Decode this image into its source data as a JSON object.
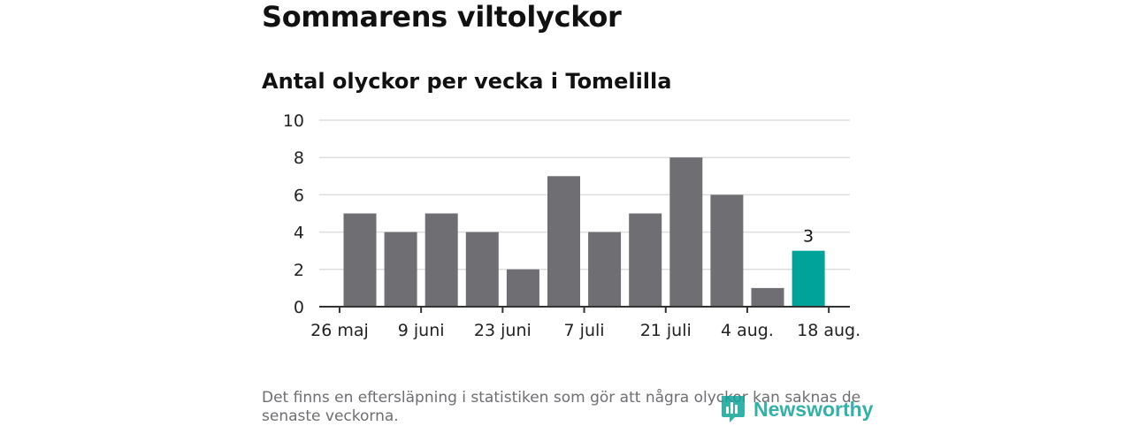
{
  "header": {
    "title": "Sommarens viltolyckor",
    "subtitle": "Antal olyckor per vecka i Tomelilla"
  },
  "footer": {
    "note": "Det finns en eftersläpning i statistiken som gör att några olyckor kan saknas de senaste veckorna.",
    "logo_text": "Newsworthy"
  },
  "colors": {
    "bar": "#6e6e73",
    "highlight": "#00a397",
    "grid": "#dddddd",
    "axis": "#333333"
  },
  "chart_data": {
    "type": "bar",
    "title": "Antal olyckor per vecka i Tomelilla",
    "xlabel": "",
    "ylabel": "",
    "ylim": [
      0,
      10
    ],
    "yticks": [
      0,
      2,
      4,
      6,
      8,
      10
    ],
    "grid": true,
    "values": [
      5,
      4,
      5,
      4,
      2,
      7,
      4,
      5,
      8,
      6,
      1,
      3
    ],
    "x_tick_labels": [
      "26 maj",
      "9 juni",
      "23 juni",
      "7 juli",
      "21 juli",
      "4 aug.",
      "18 aug."
    ],
    "highlight_index": 11,
    "data_labels": [
      {
        "index": 11,
        "text": "3"
      }
    ]
  }
}
